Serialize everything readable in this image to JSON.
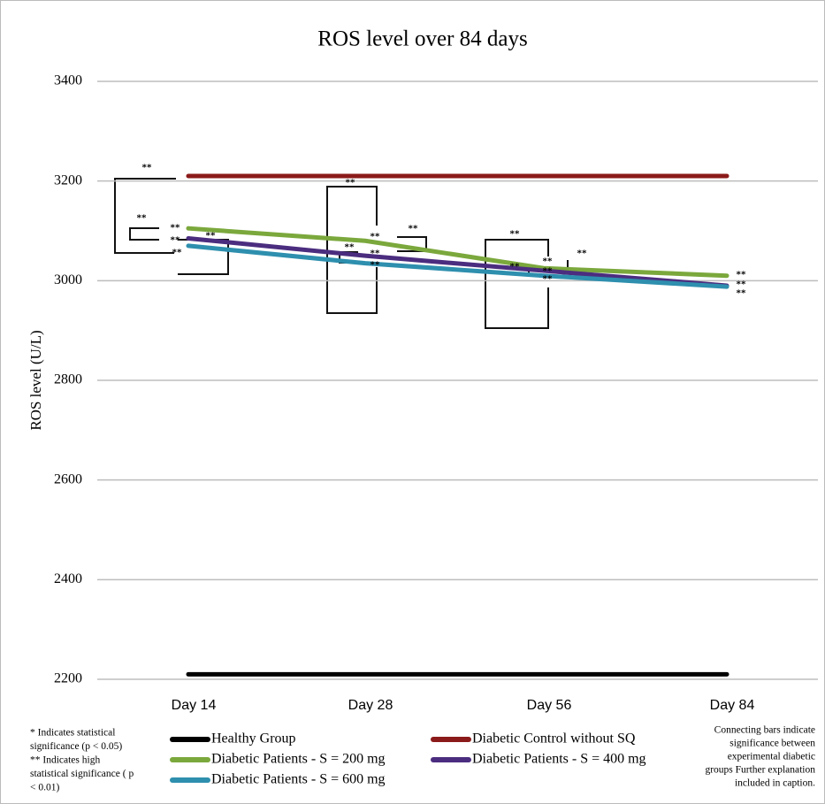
{
  "chart_data": {
    "type": "line",
    "title": "ROS level over 84 days",
    "y_label": "ROS level (U/L)",
    "categories": [
      "Day 14",
      "Day 28",
      "Day 56",
      "Day 84"
    ],
    "series": [
      {
        "name": "Healthy Group",
        "color": "#000000",
        "values": [
          2210,
          2210,
          2210,
          2210
        ]
      },
      {
        "name": "Diabetic Control without SQ",
        "color": "#8b1a1a",
        "values": [
          3210,
          3210,
          3210,
          3210
        ]
      },
      {
        "name": "Diabetic Patients - S = 200 mg",
        "color": "#7ba83c",
        "values": [
          3105,
          3080,
          3025,
          3010
        ]
      },
      {
        "name": "Diabetic Patients - S = 400 mg",
        "color": "#4b2d7f",
        "values": [
          3085,
          3050,
          3020,
          2990
        ]
      },
      {
        "name": "Diabetic Patients - S = 600 mg",
        "color": "#2e8fae",
        "values": [
          3070,
          3035,
          3010,
          2988
        ]
      }
    ],
    "ylim": [
      2200,
      3400
    ],
    "yticks": [
      2200,
      2400,
      2600,
      2800,
      3000,
      3200,
      3400
    ],
    "grid": true,
    "annotations": [
      "**",
      "**",
      "**",
      "**",
      "**",
      "**",
      "**",
      "**",
      "**",
      "**",
      "**",
      "**",
      "**",
      "**",
      "**",
      "**",
      "**",
      "**",
      "**",
      "**",
      "**"
    ],
    "notes_left": [
      "* Indicates statistical",
      "significance (p < 0.05)",
      "** Indicates high",
      "statistical significance ( p",
      "< 0.01)"
    ],
    "notes_right": [
      "Connecting bars indicate",
      "significance between",
      "experimental diabetic",
      "groups  Further explanation",
      "included in caption."
    ]
  }
}
